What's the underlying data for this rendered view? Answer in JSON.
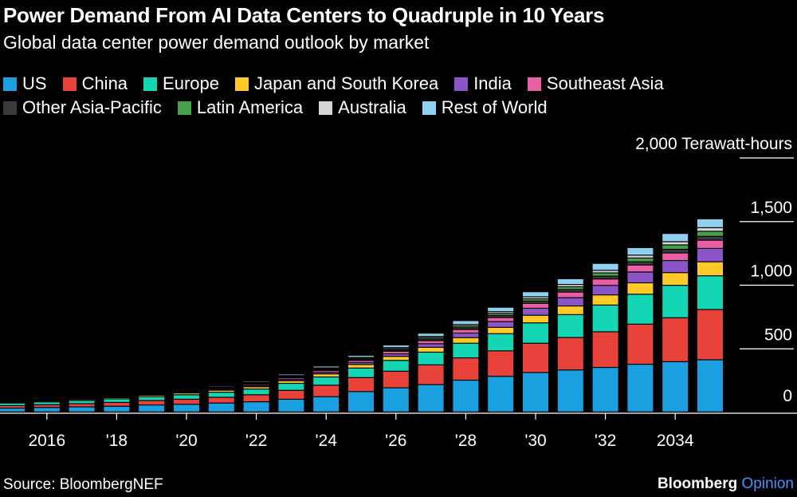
{
  "title": "Power Demand From AI Data Centers to Quadruple in 10 Years",
  "subtitle": "Global data center power demand outlook by market",
  "source": "Source: BloombergNEF",
  "brand": {
    "name": "Bloomberg",
    "suffix": "Opinion"
  },
  "chart_data": {
    "type": "bar",
    "stacked": true,
    "y_unit_label": "2,000 Terawatt-hours",
    "ylim": [
      0,
      2000
    ],
    "y_ticks": [
      {
        "value": 2000,
        "label": "2,000 Terawatt-hours"
      },
      {
        "value": 1500,
        "label": "1,500"
      },
      {
        "value": 1000,
        "label": "1,000"
      },
      {
        "value": 500,
        "label": "500"
      },
      {
        "value": 0,
        "label": "0"
      }
    ],
    "x_tick_labels": [
      {
        "year": 2016,
        "label": "2016"
      },
      {
        "year": 2018,
        "label": "'18"
      },
      {
        "year": 2020,
        "label": "'20"
      },
      {
        "year": 2022,
        "label": "'22"
      },
      {
        "year": 2024,
        "label": "'24"
      },
      {
        "year": 2026,
        "label": "'26"
      },
      {
        "year": 2028,
        "label": "'28"
      },
      {
        "year": 2030,
        "label": "'30"
      },
      {
        "year": 2032,
        "label": "'32"
      },
      {
        "year": 2034,
        "label": "2034"
      }
    ],
    "categories": [
      2015,
      2016,
      2017,
      2018,
      2019,
      2020,
      2021,
      2022,
      2023,
      2024,
      2025,
      2026,
      2027,
      2028,
      2029,
      2030,
      2031,
      2032,
      2033,
      2034,
      2035
    ],
    "series": [
      {
        "name": "US",
        "color": "#1a9fe0",
        "values": [
          30,
          35,
          40,
          45,
          55,
          60,
          70,
          80,
          100,
          120,
          160,
          190,
          215,
          250,
          280,
          310,
          330,
          350,
          375,
          395,
          410
        ]
      },
      {
        "name": "China",
        "color": "#e8423b",
        "values": [
          20,
          22,
          25,
          30,
          35,
          40,
          45,
          55,
          70,
          90,
          110,
          130,
          155,
          175,
          200,
          230,
          255,
          280,
          315,
          345,
          395
        ]
      },
      {
        "name": "Europe",
        "color": "#14d6b4",
        "values": [
          20,
          22,
          25,
          28,
          30,
          35,
          40,
          45,
          55,
          65,
          75,
          85,
          100,
          115,
          135,
          160,
          180,
          210,
          235,
          255,
          265
        ]
      },
      {
        "name": "Japan and South Korea",
        "color": "#ffc928",
        "values": [
          8,
          8,
          9,
          10,
          12,
          14,
          16,
          18,
          20,
          24,
          28,
          32,
          38,
          44,
          50,
          60,
          68,
          80,
          90,
          100,
          110
        ]
      },
      {
        "name": "India",
        "color": "#8b55c7",
        "values": [
          2,
          2,
          3,
          3,
          4,
          5,
          6,
          8,
          10,
          12,
          15,
          20,
          28,
          36,
          45,
          55,
          65,
          75,
          85,
          95,
          105
        ]
      },
      {
        "name": "Southeast Asia",
        "color": "#e85fa6",
        "values": [
          3,
          4,
          4,
          5,
          6,
          7,
          8,
          10,
          12,
          14,
          16,
          20,
          24,
          28,
          32,
          38,
          44,
          50,
          55,
          60,
          65
        ]
      },
      {
        "name": "Other Asia-Pacific",
        "color": "#3a3a3a",
        "values": [
          3,
          3,
          3,
          4,
          4,
          5,
          5,
          6,
          7,
          8,
          9,
          10,
          12,
          14,
          16,
          18,
          20,
          22,
          25,
          28,
          30
        ]
      },
      {
        "name": "Latin America",
        "color": "#45a049",
        "values": [
          2,
          2,
          3,
          3,
          3,
          4,
          4,
          5,
          6,
          7,
          8,
          10,
          12,
          14,
          16,
          18,
          22,
          26,
          30,
          35,
          40
        ]
      },
      {
        "name": "Australia",
        "color": "#d6d6d6",
        "values": [
          2,
          2,
          3,
          3,
          3,
          4,
          4,
          5,
          6,
          7,
          8,
          9,
          10,
          12,
          14,
          16,
          18,
          20,
          22,
          25,
          28
        ]
      },
      {
        "name": "Rest of World",
        "color": "#8fd0f0",
        "values": [
          5,
          5,
          6,
          6,
          7,
          8,
          9,
          10,
          12,
          14,
          16,
          20,
          25,
          30,
          35,
          40,
          45,
          55,
          60,
          65,
          70
        ]
      }
    ],
    "grid": "horizontal",
    "legend_position": "top"
  }
}
